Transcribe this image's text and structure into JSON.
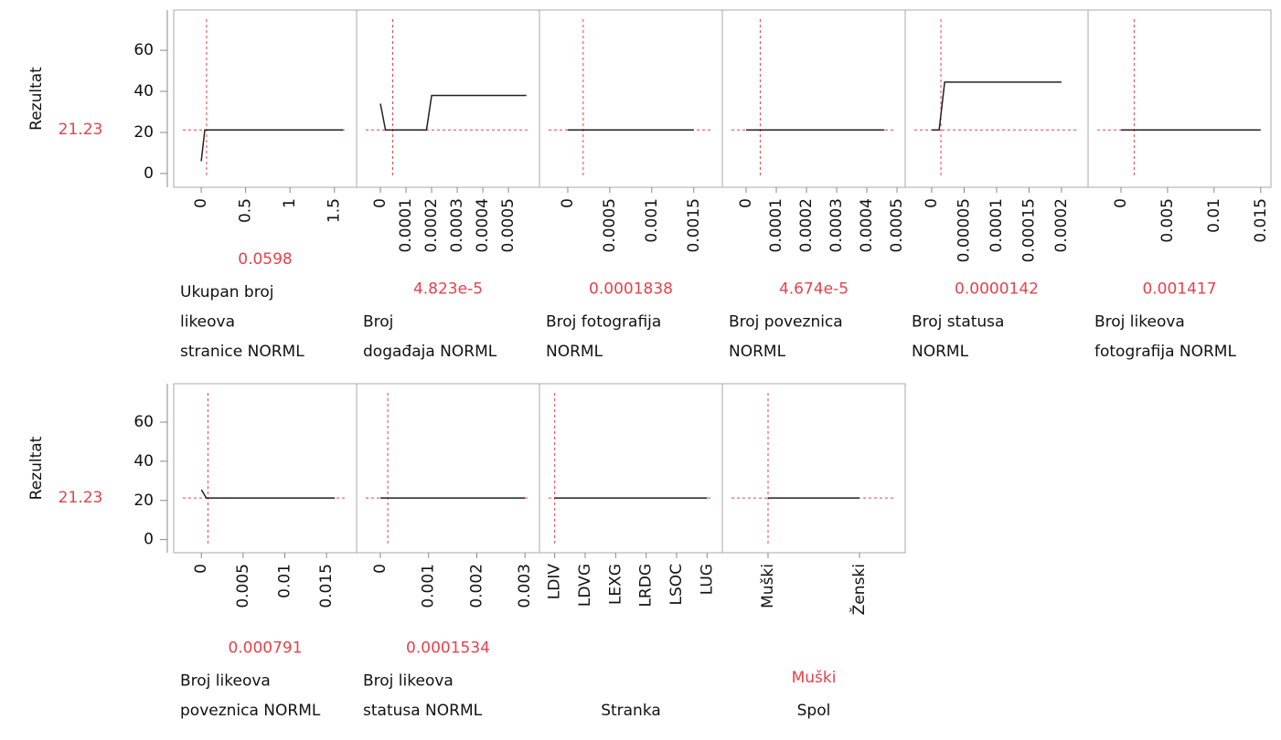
{
  "response": {
    "label": "Rezultat",
    "current": 21.23,
    "ylim": [
      -6.7,
      79.6
    ],
    "yticks": [
      0,
      20,
      40,
      60
    ]
  },
  "chart_data": [
    {
      "type": "line",
      "xlabel": [
        "Ukupan broj",
        "likeova",
        "stranice NORML"
      ],
      "current": 0.0598,
      "x": [
        0,
        0.04,
        1.6
      ],
      "values": [
        6,
        21.23,
        21.23
      ],
      "xlim": [
        -0.31,
        1.75
      ],
      "xticks": [
        0,
        0.5,
        1,
        1.5
      ]
    },
    {
      "type": "line",
      "xlabel": [
        "Broj",
        "događaja NORML"
      ],
      "current": {
        "value": 4.823e-05,
        "label": "4.823e-5"
      },
      "x": [
        0,
        2e-05,
        0.00018,
        0.0002,
        0.00057
      ],
      "values": [
        34,
        21.23,
        21.23,
        38,
        38
      ],
      "xlim": [
        -9.29e-05,
        0.000621
      ],
      "xticks": [
        0,
        0.0001,
        0.0002,
        0.0003,
        0.0004,
        0.0005
      ]
    },
    {
      "type": "line",
      "xlabel": [
        "Broj fotografija",
        "NORML"
      ],
      "current": 0.0001838,
      "x": [
        0,
        0.0015
      ],
      "values": [
        21.23,
        21.23
      ],
      "xlim": [
        -0.000337,
        0.00184
      ],
      "xticks": [
        0,
        0.0005,
        0.001,
        0.0015
      ]
    },
    {
      "type": "line",
      "xlabel": [
        "Broj poveznica",
        "NORML"
      ],
      "current": {
        "value": 4.674e-05,
        "label": "4.674e-5"
      },
      "x": [
        0,
        0.000458
      ],
      "values": [
        21.23,
        21.23
      ],
      "xlim": [
        -7.88e-05,
        0.000527
      ],
      "xticks": [
        0,
        0.0001,
        0.0002,
        0.0003,
        0.0004,
        0.0005
      ]
    },
    {
      "type": "line",
      "xlabel": [
        "Broj statusa",
        "NORML"
      ],
      "current": 1.42e-05,
      "x": [
        0,
        1.15e-05,
        2e-05,
        0.0002
      ],
      "values": [
        21.23,
        21.23,
        44.5,
        44.5
      ],
      "xlim": [
        -4.08e-05,
        0.000241
      ],
      "xticks": [
        0,
        5e-05,
        0.0001,
        0.00015,
        0.0002
      ]
    },
    {
      "type": "line",
      "xlabel": [
        "Broj likeova",
        "fotografija NORML"
      ],
      "current": 0.001417,
      "x": [
        0,
        0.015
      ],
      "values": [
        21.23,
        21.23
      ],
      "xlim": [
        -0.00353,
        0.0161
      ],
      "xticks": [
        0,
        0.005,
        0.01,
        0.015
      ]
    },
    {
      "type": "line",
      "xlabel": [
        "Broj likeova",
        "poveznica NORML"
      ],
      "current": 0.000791,
      "x": [
        0,
        0.0006,
        0.016
      ],
      "values": [
        25.5,
        21.23,
        21.23
      ],
      "xlim": [
        -0.00331,
        0.0186
      ],
      "xticks": [
        0,
        0.005,
        0.01,
        0.015
      ]
    },
    {
      "type": "line",
      "xlabel": [
        "Broj likeova",
        "statusa NORML"
      ],
      "current": 0.0001534,
      "x": [
        0,
        0.003
      ],
      "values": [
        21.23,
        21.23
      ],
      "xlim": [
        -0.000493,
        0.0033
      ],
      "xticks": [
        0,
        0.001,
        0.002,
        0.003
      ]
    },
    {
      "type": "category",
      "xlabel": [
        "Stranka"
      ],
      "current": "LDIV",
      "show_current": false,
      "categories": [
        "LDIV",
        "LDVG",
        "LEXG",
        "LRDG",
        "LSOC",
        "LUG"
      ],
      "values": [
        21.23,
        21.23,
        21.23,
        21.23,
        21.23,
        21.23
      ]
    },
    {
      "type": "category",
      "xlabel": [
        "Spol"
      ],
      "current": "Muški",
      "show_current": true,
      "categories": [
        "Muški",
        "Ženski"
      ],
      "values": [
        21.23,
        21.23
      ]
    }
  ]
}
